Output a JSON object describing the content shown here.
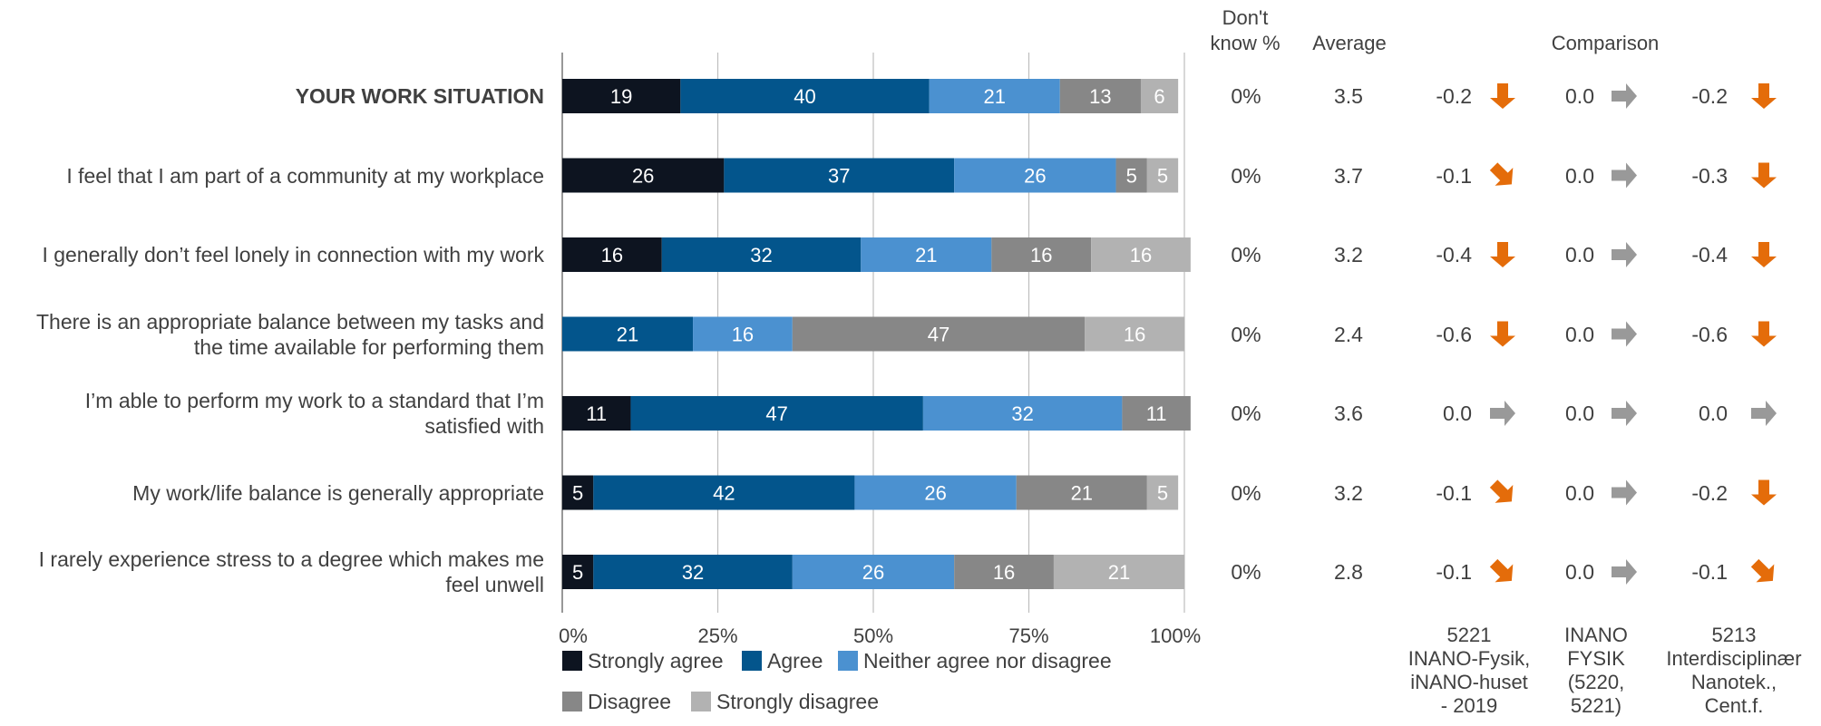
{
  "chart_data": {
    "type": "bar",
    "orientation": "horizontal",
    "stacked": true,
    "categories": [
      "YOUR WORK SITUATION",
      "I feel that I am part of a community at my workplace",
      "I generally don’t feel lonely in connection with my work",
      "There is an appropriate balance between my tasks and the time available for performing them",
      "I’m able to perform my work to a standard that I’m satisfied with",
      "My work/life balance is generally appropriate",
      "I rarely experience stress to a degree which makes me feel unwell"
    ],
    "category_lines": [
      [
        "YOUR WORK SITUATION"
      ],
      [
        "I feel that I am part of a community at my workplace"
      ],
      [
        "I generally don’t feel lonely in connection with my work"
      ],
      [
        "There is an appropriate balance between my tasks and",
        "the time available for performing them"
      ],
      [
        "I’m able to perform my work to a standard that I’m",
        "satisfied with"
      ],
      [
        "My work/life balance is generally appropriate"
      ],
      [
        "I rarely experience stress to a degree which makes me",
        "feel unwell"
      ]
    ],
    "series": [
      {
        "name": "Strongly agree",
        "color": "#0d1420",
        "values": [
          19,
          26,
          16,
          0,
          11,
          5,
          5
        ]
      },
      {
        "name": "Agree",
        "color": "#03558c",
        "values": [
          40,
          37,
          32,
          21,
          47,
          42,
          32
        ]
      },
      {
        "name": "Neither agree nor disagree",
        "color": "#4b91d0",
        "values": [
          21,
          26,
          21,
          16,
          32,
          26,
          26
        ]
      },
      {
        "name": "Disagree",
        "color": "#878787",
        "values": [
          13,
          5,
          16,
          47,
          11,
          21,
          16
        ]
      },
      {
        "name": "Strongly disagree",
        "color": "#b2b2b2",
        "values": [
          6,
          5,
          16,
          16,
          0,
          5,
          21
        ]
      }
    ],
    "xlim": [
      0,
      100
    ],
    "x_ticks": [
      "0%",
      "25%",
      "50%",
      "75%",
      "100%"
    ],
    "x_tick_values": [
      0,
      25,
      50,
      75,
      100
    ],
    "grid": true,
    "legend_placement": "bottom",
    "dont_know_header": [
      "Don't",
      "know %"
    ],
    "dont_know": [
      "0%",
      "0%",
      "0%",
      "0%",
      "0%",
      "0%",
      "0%"
    ],
    "average_header": "Average",
    "average": [
      "3.5",
      "3.7",
      "3.2",
      "2.4",
      "3.6",
      "3.2",
      "2.8"
    ],
    "comparison_header": "Comparison",
    "comparison_groups": [
      {
        "label_lines": [
          "5221",
          "INANO-Fysik,",
          "iNANO-huset",
          "- 2019"
        ],
        "values": [
          "-0.2",
          "-0.1",
          "-0.4",
          "-0.6",
          "0.0",
          "-0.1",
          "-0.1"
        ],
        "arrows": [
          "down",
          "down-right",
          "down",
          "down",
          "right",
          "down-right",
          "down-right"
        ]
      },
      {
        "label_lines": [
          "INANO",
          "FYSIK",
          "(5220,",
          "5221)"
        ],
        "values": [
          "0.0",
          "0.0",
          "0.0",
          "0.0",
          "0.0",
          "0.0",
          "0.0"
        ],
        "arrows": [
          "right",
          "right",
          "right",
          "right",
          "right",
          "right",
          "right"
        ]
      },
      {
        "label_lines": [
          "5213",
          "Interdisciplinær",
          "Nanotek.,",
          "Cent.f."
        ],
        "values": [
          "-0.2",
          "-0.3",
          "-0.4",
          "-0.6",
          "0.0",
          "-0.2",
          "-0.1"
        ],
        "arrows": [
          "down",
          "down",
          "down",
          "down",
          "right",
          "down",
          "down-right"
        ]
      }
    ],
    "arrow_colors": {
      "down": "#e46c0a",
      "down-right": "#e46c0a",
      "right": "#999999"
    }
  }
}
